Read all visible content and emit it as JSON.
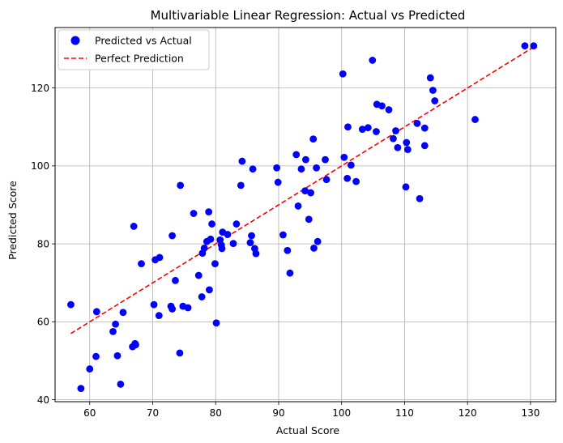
{
  "chart_data": {
    "type": "scatter",
    "title": "Multivariable Linear Regression: Actual vs Predicted",
    "xlabel": "Actual Score",
    "ylabel": "Predicted Score",
    "xlim": [
      54.5,
      134.0
    ],
    "ylim": [
      39.5,
      135.5
    ],
    "xticks": [
      60,
      70,
      80,
      90,
      100,
      110,
      120,
      130
    ],
    "yticks": [
      40,
      60,
      80,
      100,
      120
    ],
    "grid": true,
    "legend_position": "top-left",
    "series": [
      {
        "name": "Predicted vs Actual",
        "kind": "scatter",
        "color": "#0000ff",
        "points": [
          [
            57.0,
            64.4
          ],
          [
            58.6,
            42.9
          ],
          [
            60.0,
            47.9
          ],
          [
            61.0,
            51.1
          ],
          [
            61.1,
            62.6
          ],
          [
            63.7,
            57.5
          ],
          [
            64.1,
            59.4
          ],
          [
            64.4,
            51.3
          ],
          [
            64.9,
            44.0
          ],
          [
            65.3,
            62.4
          ],
          [
            66.8,
            53.6
          ],
          [
            67.0,
            84.5
          ],
          [
            67.2,
            54.4
          ],
          [
            67.3,
            54.1
          ],
          [
            68.2,
            74.9
          ],
          [
            70.2,
            64.4
          ],
          [
            70.4,
            75.9
          ],
          [
            71.0,
            61.6
          ],
          [
            71.1,
            76.5
          ],
          [
            72.9,
            64.0
          ],
          [
            73.1,
            63.3
          ],
          [
            73.1,
            82.1
          ],
          [
            73.6,
            70.6
          ],
          [
            74.3,
            52.0
          ],
          [
            74.4,
            95.0
          ],
          [
            74.8,
            64.0
          ],
          [
            75.6,
            63.6
          ],
          [
            76.5,
            87.8
          ],
          [
            77.3,
            71.9
          ],
          [
            77.8,
            66.4
          ],
          [
            77.9,
            77.6
          ],
          [
            78.2,
            78.9
          ],
          [
            78.6,
            80.6
          ],
          [
            78.9,
            88.2
          ],
          [
            79.0,
            68.2
          ],
          [
            79.2,
            81.2
          ],
          [
            79.4,
            85.1
          ],
          [
            79.9,
            74.9
          ],
          [
            80.1,
            59.7
          ],
          [
            80.7,
            81.0
          ],
          [
            80.9,
            79.7
          ],
          [
            81.0,
            78.8
          ],
          [
            81.1,
            83.0
          ],
          [
            81.9,
            82.4
          ],
          [
            82.8,
            80.1
          ],
          [
            83.3,
            85.1
          ],
          [
            84.0,
            95.0
          ],
          [
            84.2,
            101.2
          ],
          [
            85.5,
            80.3
          ],
          [
            85.7,
            82.1
          ],
          [
            85.9,
            99.2
          ],
          [
            86.2,
            78.8
          ],
          [
            86.4,
            77.5
          ],
          [
            89.7,
            99.5
          ],
          [
            89.9,
            95.8
          ],
          [
            90.7,
            82.3
          ],
          [
            91.4,
            78.3
          ],
          [
            91.8,
            72.5
          ],
          [
            92.8,
            102.9
          ],
          [
            93.1,
            89.7
          ],
          [
            93.6,
            99.2
          ],
          [
            94.2,
            93.6
          ],
          [
            94.3,
            101.6
          ],
          [
            94.8,
            86.3
          ],
          [
            95.1,
            93.1
          ],
          [
            95.5,
            106.9
          ],
          [
            95.6,
            78.9
          ],
          [
            96.0,
            99.5
          ],
          [
            96.2,
            80.6
          ],
          [
            97.4,
            101.6
          ],
          [
            97.6,
            96.5
          ],
          [
            100.2,
            123.6
          ],
          [
            100.4,
            102.2
          ],
          [
            100.9,
            96.8
          ],
          [
            101.0,
            110.0
          ],
          [
            101.5,
            100.2
          ],
          [
            102.3,
            96.0
          ],
          [
            103.3,
            109.4
          ],
          [
            104.2,
            109.8
          ],
          [
            104.9,
            127.1
          ],
          [
            105.5,
            108.8
          ],
          [
            105.6,
            115.8
          ],
          [
            106.4,
            115.4
          ],
          [
            107.5,
            114.4
          ],
          [
            108.2,
            107.0
          ],
          [
            108.6,
            109.0
          ],
          [
            108.9,
            104.7
          ],
          [
            110.2,
            94.6
          ],
          [
            110.3,
            106.0
          ],
          [
            110.5,
            104.2
          ],
          [
            112.0,
            110.9
          ],
          [
            112.4,
            91.6
          ],
          [
            113.2,
            109.7
          ],
          [
            113.2,
            105.2
          ],
          [
            114.1,
            122.6
          ],
          [
            114.5,
            119.4
          ],
          [
            114.8,
            116.7
          ],
          [
            121.2,
            111.9
          ],
          [
            129.1,
            130.8
          ],
          [
            130.5,
            130.8
          ]
        ]
      },
      {
        "name": "Perfect Prediction",
        "kind": "line",
        "style": "dashed",
        "color": "#ff0000",
        "points": [
          [
            57.0,
            57.0
          ],
          [
            130.5,
            130.5
          ]
        ]
      }
    ]
  }
}
